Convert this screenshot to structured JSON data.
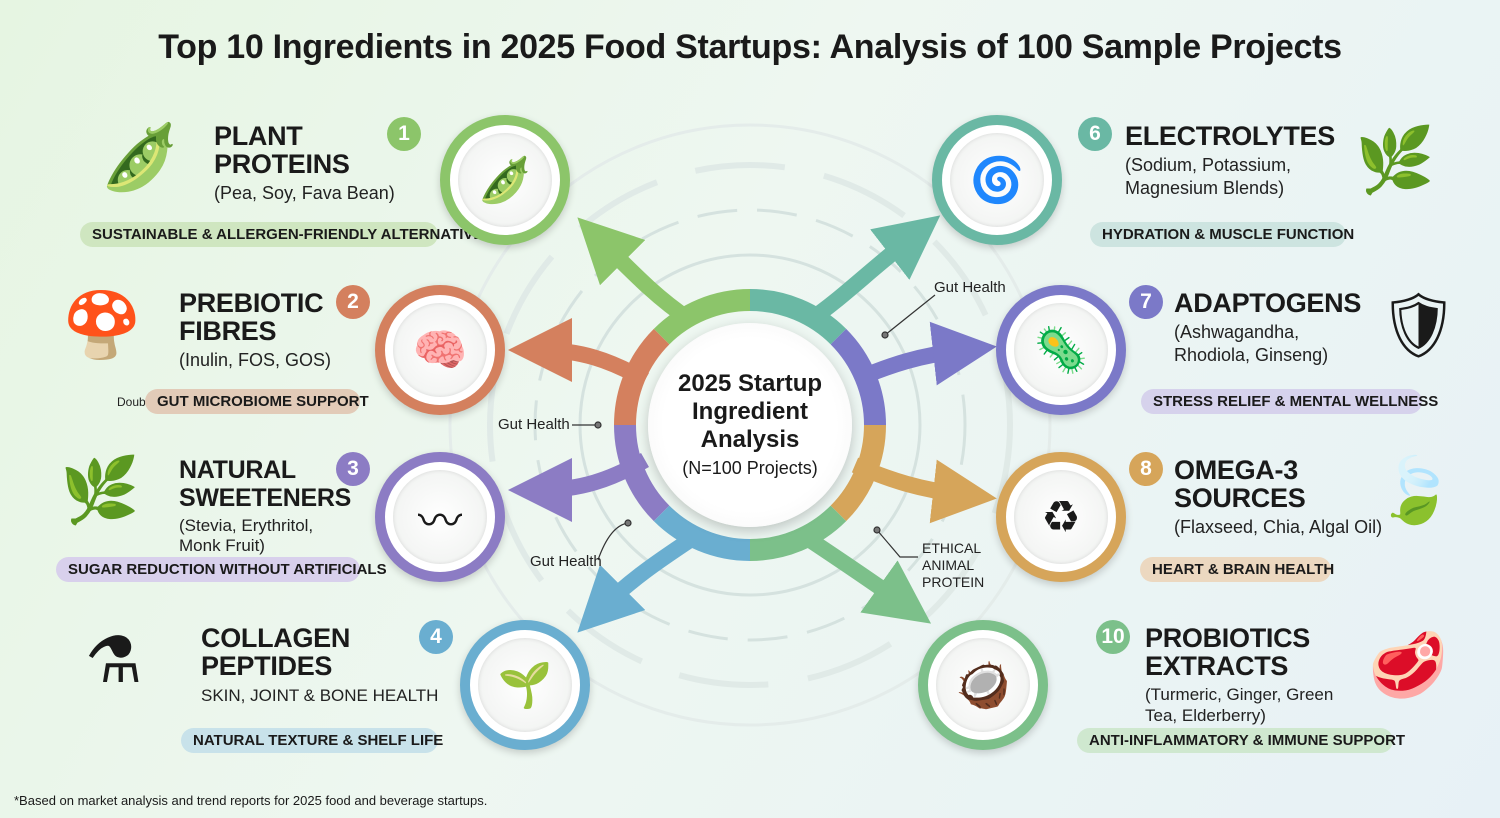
{
  "title": "Top 10 Ingredients in 2025 Food Startups: Analysis of 100 Sample Projects",
  "center": {
    "title": "2025 Startup Ingredient Analysis",
    "subtitle": "(N=100 Projects)"
  },
  "callouts": [
    "Gut Health",
    "Gut Health",
    "Gut Health",
    "ETHICAL ANIMAL PROTEIN"
  ],
  "stray_text": "Doubl",
  "items": [
    {
      "number": "1",
      "name": "PLANT PROTEINS",
      "detail": "(Pea, Soy, Fava Bean)",
      "tag": "SUSTAINABLE & ALLERGEN-FRIENDLY ALTERNATIVES",
      "color": "#8cc56a",
      "icon": "soybean-pod-icon"
    },
    {
      "number": "2",
      "name": "PREBIOTIC FIBRES",
      "detail": "(Inulin, FOS, GOS)",
      "tag": "GUT MICROBIOME SUPPORT",
      "color": "#d4805e",
      "icon": "brain-icon"
    },
    {
      "number": "3",
      "name": "NATURAL SWEETENERS",
      "detail": "(Stevia, Erythritol, Monk Fruit)",
      "tag": "SUGAR REDUCTION WITHOUT ARTIFICIALS",
      "color": "#8c7cc4",
      "icon": "intestine-icon"
    },
    {
      "number": "4",
      "name": "COLLAGEN PEPTIDES",
      "detail": "SKIN, JOINT & BONE HEALTH",
      "tag": "NATURAL TEXTURE & SHELF LIFE",
      "color": "#6aaed0",
      "icon": "leaf-smile-icon"
    },
    {
      "number": "6",
      "name": "ELECTROLYTES",
      "detail": "(Sodium, Potassium, Magnesium Blends)",
      "tag": "HYDRATION & MUSCLE FUNCTION",
      "color": "#6ab8a4",
      "icon": "spiral-drop-icon"
    },
    {
      "number": "7",
      "name": "ADAPTOGENS",
      "detail": "(Ashwagandha, Rhodiola, Ginseng)",
      "tag": "STRESS RELIEF & MENTAL WELLNESS",
      "color": "#7b79c8",
      "icon": "microbe-shield-icon"
    },
    {
      "number": "8",
      "name": "OMEGA-3 SOURCES",
      "detail": "(Flaxseed, Chia, Algal Oil)",
      "tag": "HEART & BRAIN HEALTH",
      "color": "#d6a55a",
      "icon": "recycle-icon"
    },
    {
      "number": "10",
      "name": "PROBIOTICS EXTRACTS",
      "detail": "(Turmeric, Ginger, Green Tea, Elderberry)",
      "tag": "ANTI-INFLAMMATORY & IMMUNE SUPPORT",
      "color": "#7cc08a",
      "icon": "coconut-icon"
    }
  ],
  "footnote": "*Based on market analysis and trend reports for 2025 food and beverage startups."
}
